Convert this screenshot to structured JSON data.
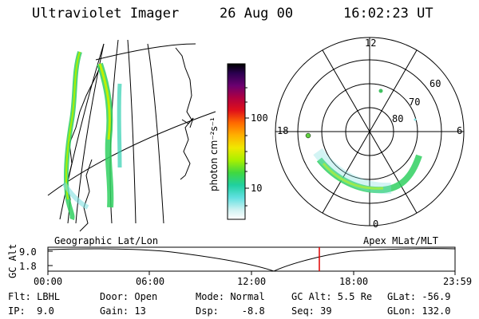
{
  "header": {
    "instrument": "Ultraviolet Imager",
    "date": "26 Aug 00",
    "time": "16:02:23 UT"
  },
  "colorbar": {
    "unit_label": "photon cm⁻²s⁻¹",
    "ticks": [
      "100",
      "10"
    ],
    "colors": [
      "#000000",
      "#2a004f",
      "#5a0070",
      "#8a0070",
      "#b80040",
      "#d8001a",
      "#f03000",
      "#ff7a00",
      "#ffb000",
      "#f0e000",
      "#b0f000",
      "#60e020",
      "#20d060",
      "#20d0b0",
      "#80e0e0",
      "#d8f4f4",
      "#ffffff"
    ]
  },
  "polar_plot": {
    "mlt_labels": [
      "12",
      "18",
      "6",
      "0"
    ],
    "lat_labels": [
      "60",
      "70",
      "80"
    ]
  },
  "timeline": {
    "ylabel": "GC Alt",
    "y_ticks": [
      "9.0",
      "1.8"
    ],
    "left_title": "Geographic Lat/Lon",
    "right_title": "Apex MLat/MLT",
    "x_ticks": [
      "00:00",
      "06:00",
      "12:00",
      "18:00",
      "23:59"
    ]
  },
  "info": {
    "filter": "Flt: LBHL",
    "ip": "IP:  9.0",
    "door": "Door: Open",
    "gain": "Gain: 13",
    "mode": "Mode: Normal",
    "dsp": "Dsp:    -8.8",
    "gc_alt": "GC Alt: 5.5 Re",
    "seq": "Seq: 39",
    "glat": "GLat: -56.9",
    "glon": "GLon: 132.0"
  }
}
